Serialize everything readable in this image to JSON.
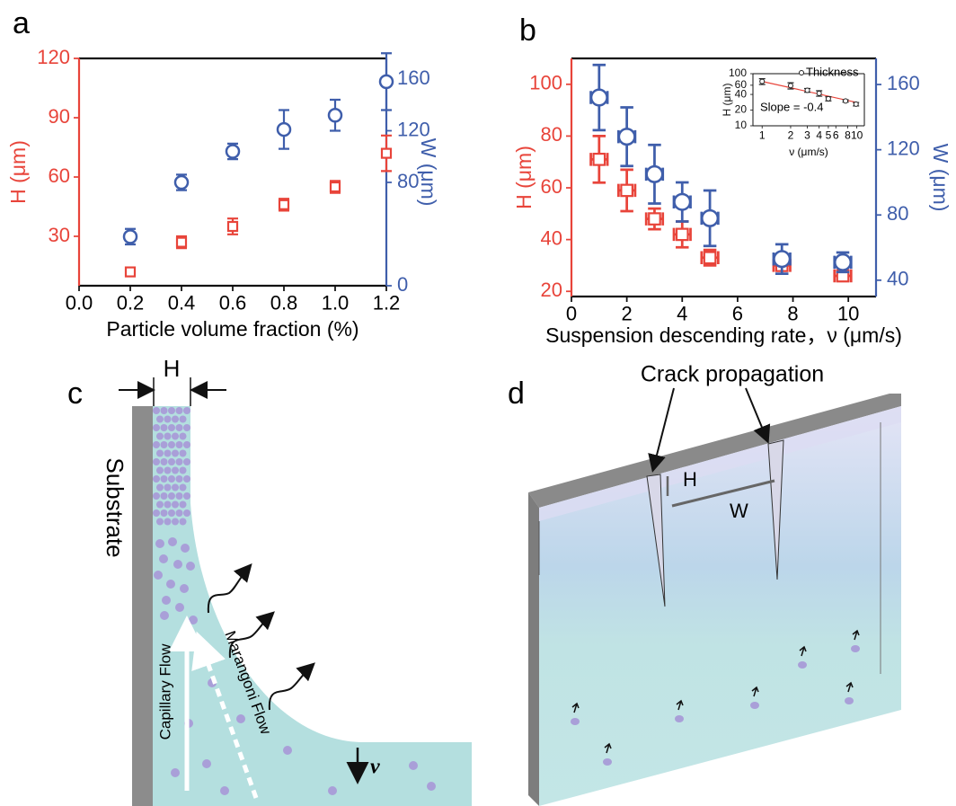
{
  "chart_data": [
    {
      "type": "scatter",
      "xlabel": "Particle volume fraction (%)",
      "ylabel": "H (μm)",
      "y2label": "W (μm)",
      "x": [
        0.2,
        0.4,
        0.6,
        0.8,
        1.0,
        1.2
      ],
      "xlim": [
        0,
        1.2
      ],
      "xticks": [
        {
          "value": 0,
          "label": "0.0"
        },
        0.2,
        0.4,
        0.6,
        0.8,
        {
          "value": 1,
          "label": "1.0"
        },
        1.2
      ],
      "ylim": [
        5,
        120
      ],
      "yticks": [
        30,
        60,
        90,
        120
      ],
      "y2lim": [
        0,
        176
      ],
      "y2ticks": [
        0,
        80,
        120,
        160
      ],
      "series": [
        {
          "color": "#e8443a",
          "marker": "square",
          "values": [
            12,
            27,
            35,
            46,
            55,
            72
          ],
          "errors": [
            1,
            3,
            4,
            3,
            3,
            9
          ]
        },
        {
          "axis": "y2",
          "color": "#3f5eab",
          "marker": "circle",
          "values": [
            38,
            80,
            104,
            121,
            132,
            158
          ],
          "errors": [
            6,
            6,
            6,
            15,
            12,
            22
          ]
        }
      ]
    },
    {
      "type": "scatter",
      "xlabel": "Suspension descending rate，ν (μm/s)",
      "ylabel": "H (μm)",
      "y2label": "W (μm)",
      "x": [
        1,
        2,
        3,
        4,
        5,
        7.6,
        9.8
      ],
      "xlim": [
        0,
        11
      ],
      "xticks": [
        0,
        2,
        4,
        6,
        8,
        10
      ],
      "ylim": [
        18,
        110
      ],
      "yticks": [
        20,
        40,
        60,
        80,
        100
      ],
      "y2lim": [
        30,
        176
      ],
      "y2ticks": [
        40,
        80,
        120,
        160
      ],
      "series": [
        {
          "color": "#e8443a",
          "marker": "square",
          "values": [
            71,
            59,
            48,
            42,
            33,
            30,
            26
          ],
          "errors": [
            9,
            8,
            4,
            5,
            3,
            1.5,
            2
          ],
          "xerrors": [
            0.3,
            0.3,
            0.3,
            0.3,
            0.3,
            0.3,
            0.3
          ]
        },
        {
          "axis": "y2",
          "color": "#3f5eab",
          "marker": "circle",
          "values": [
            152,
            128,
            105,
            88,
            78,
            53,
            51
          ],
          "errors": [
            20,
            18,
            18,
            12,
            17,
            9,
            6
          ],
          "xerrors": [
            0.3,
            0.3,
            0.3,
            0.3,
            0.3,
            0.3,
            0.3
          ]
        }
      ]
    },
    {
      "type": "scatter",
      "xlabel": "ν (μm/s)",
      "ylabel": "H (μm)",
      "xscale": "log",
      "yscale": "log",
      "x": [
        1,
        2,
        3,
        4,
        5,
        7.6,
        9.8
      ],
      "xlim": [
        0.8,
        12
      ],
      "xticks": [
        1,
        2,
        3,
        4,
        5,
        6,
        8,
        10
      ],
      "ylim": [
        10,
        100
      ],
      "yticks": [
        10,
        20,
        40,
        60,
        100
      ],
      "legend": "upper right",
      "annotation": "Slope = -0.4",
      "series": [
        {
          "name": "Thickness",
          "color": "#222222",
          "marker": "dot",
          "values": [
            71,
            59,
            48,
            42,
            33,
            30,
            26
          ],
          "errors": [
            9,
            8,
            4,
            5,
            3,
            1.5,
            2
          ]
        }
      ],
      "fit": {
        "x": [
          1,
          10
        ],
        "values": [
          71,
          28
        ],
        "color": "#e8443a"
      }
    }
  ],
  "figure": {
    "panel_labels": [
      "a",
      "b",
      "c",
      "d"
    ],
    "c": {
      "H": "H",
      "substrate": "Substrate",
      "capillary": "Capillary Flow",
      "marangoni": "Marangoni Flow",
      "v": "v"
    },
    "d": {
      "crack": "Crack propagation",
      "H": "H",
      "W": "W"
    }
  }
}
